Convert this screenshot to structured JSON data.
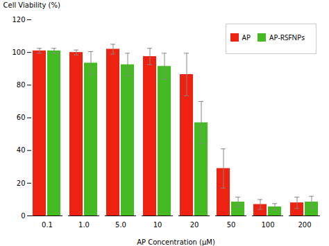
{
  "chart_data": {
    "type": "bar",
    "categories": [
      "0.1",
      "1.0",
      "5.0",
      "10",
      "20",
      "50",
      "100",
      "200"
    ],
    "series": [
      {
        "name": "AP",
        "color": "#ee2211",
        "values": [
          101,
          100,
          102,
          97.5,
          86.5,
          29,
          7,
          8
        ],
        "errors": [
          1.5,
          1.5,
          3,
          5,
          13,
          12,
          3,
          3.5
        ]
      },
      {
        "name": "AP-RSFNPs",
        "color": "#44bb22",
        "values": [
          101,
          93.5,
          92.5,
          91.5,
          57,
          8.5,
          5.5,
          8.5
        ],
        "errors": [
          1.5,
          7,
          7,
          8,
          13,
          3,
          2,
          3.5
        ]
      }
    ],
    "xlabel": "AP Concentration (μM)",
    "ylabel": "Cell Viability (%)",
    "ylim": [
      0,
      120
    ],
    "yticks": [
      0,
      20,
      40,
      60,
      80,
      100,
      120
    ],
    "legend": "upper right",
    "grid": false
  }
}
